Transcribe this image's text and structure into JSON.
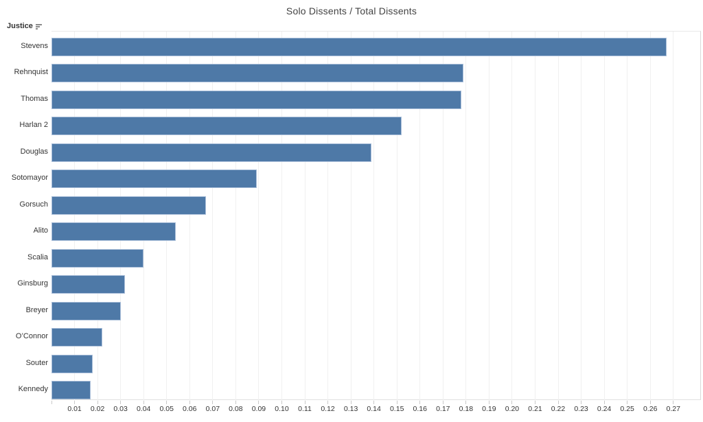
{
  "chart_data": {
    "type": "bar",
    "orientation": "horizontal",
    "title": "Solo Dissents / Total Dissents",
    "ylabel": "Justice",
    "xlabel": "",
    "categories": [
      "Stevens",
      "Rehnquist",
      "Thomas",
      "Harlan 2",
      "Douglas",
      "Sotomayor",
      "Gorsuch",
      "Alito",
      "Scalia",
      "Ginsburg",
      "Breyer",
      "O’Connor",
      "Souter",
      "Kennedy"
    ],
    "values": [
      0.267,
      0.179,
      0.178,
      0.152,
      0.139,
      0.089,
      0.067,
      0.054,
      0.04,
      0.032,
      0.03,
      0.022,
      0.018,
      0.017
    ],
    "sort": "descending",
    "grid": true,
    "legend": "none",
    "xlim": [
      0,
      0.282
    ],
    "x_ticks": [
      0.01,
      0.02,
      0.03,
      0.04,
      0.05,
      0.06,
      0.07,
      0.08,
      0.09,
      0.1,
      0.11,
      0.12,
      0.13,
      0.14,
      0.15,
      0.16,
      0.17,
      0.18,
      0.19,
      0.2,
      0.21,
      0.22,
      0.23,
      0.24,
      0.25,
      0.26,
      0.27
    ],
    "x_tick_labels": [
      "0.01",
      "0.02",
      "0.03",
      "0.04",
      "0.05",
      "0.06",
      "0.07",
      "0.08",
      "0.09",
      "0.10",
      "0.11",
      "0.12",
      "0.13",
      "0.14",
      "0.15",
      "0.16",
      "0.17",
      "0.18",
      "0.19",
      "0.20",
      "0.21",
      "0.22",
      "0.23",
      "0.24",
      "0.25",
      "0.26",
      "0.27"
    ]
  },
  "header": {
    "field_label": "Justice",
    "sort_icon": "sort-descending-icon"
  },
  "colors": {
    "bar": "#4e79a7",
    "bar_border": "#a9bed9",
    "gridline": "#f0f0f0",
    "axis_line": "#d9d9d9",
    "tick": "#c9c9c9",
    "title_text": "#424242",
    "label_text": "#333333"
  }
}
